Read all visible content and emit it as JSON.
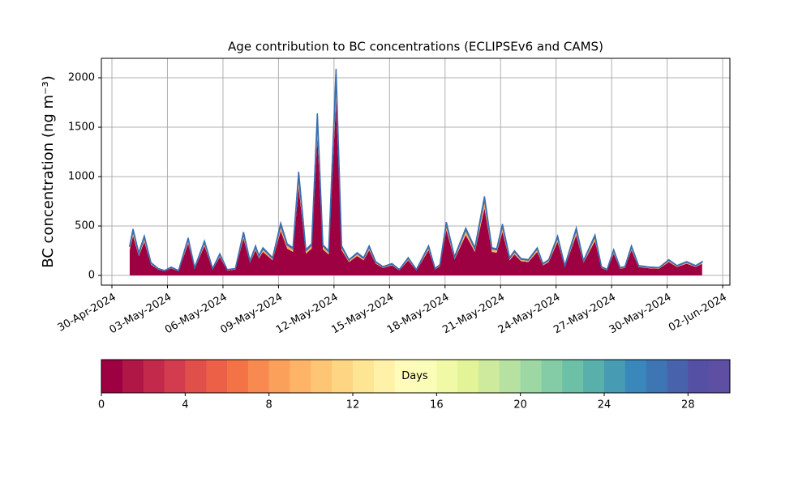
{
  "chart_data": [
    {
      "type": "stacked-area",
      "title": "Age contribution to BC concentrations (ECLIPSEv6 and CAMS)",
      "y_label": "BC concentration (ng m⁻³)",
      "x": [
        19843.96,
        19844.14,
        19844.45,
        19844.75,
        19845.11,
        19845.5,
        19845.85,
        19846.2,
        19846.6,
        19847.12,
        19847.47,
        19848.0,
        19848.44,
        19848.83,
        19849.23,
        19849.67,
        19850.11,
        19850.46,
        19850.76,
        19850.94,
        19851.16,
        19851.68,
        19852.12,
        19852.47,
        19852.78,
        19853.09,
        19853.48,
        19853.79,
        19854.1,
        19854.4,
        19854.71,
        19855.11,
        19855.41,
        19855.81,
        19856.25,
        19856.6,
        19856.9,
        19857.25,
        19857.65,
        19858.13,
        19858.53,
        19859.01,
        19859.45,
        19860.11,
        19860.46,
        19860.72,
        19861.07,
        19861.51,
        19862.12,
        19862.61,
        19863.13,
        19863.53,
        19863.79,
        19864.1,
        19864.49,
        19864.75,
        19865.11,
        19865.5,
        19865.98,
        19866.29,
        19866.6,
        19867.08,
        19867.47,
        19868.09,
        19868.48,
        19869.1,
        19869.45,
        19869.75,
        19870.11,
        19870.46,
        19870.72,
        19871.07,
        19871.46,
        19872.04,
        19872.56,
        19873.09,
        19873.53,
        19874.05,
        19874.54,
        19874.89
      ],
      "series": [
        {
          "color": "#9e0142",
          "values": [
            255,
            400,
            196,
            340,
            110,
            60,
            42,
            72,
            42,
            323,
            68,
            298,
            60,
            187,
            51,
            60,
            374,
            128,
            255,
            170,
            238,
            153,
            450,
            272,
            238,
            893,
            221,
            272,
            1394,
            264,
            212,
            1777,
            255,
            136,
            196,
            153,
            255,
            119,
            76,
            102,
            51,
            153,
            51,
            255,
            60,
            94,
            459,
            162,
            408,
            238,
            680,
            238,
            230,
            442,
            153,
            212,
            144,
            136,
            238,
            102,
            136,
            340,
            85,
            408,
            128,
            348,
            76,
            51,
            221,
            68,
            76,
            255,
            85,
            72,
            68,
            136,
            85,
            119,
            85,
            119
          ]
        },
        {
          "color": "#fdae61",
          "values": [
            33,
            52,
            25,
            44,
            14,
            8,
            6,
            9,
            6,
            42,
            9,
            38,
            8,
            24,
            7,
            8,
            48,
            16,
            33,
            22,
            31,
            20,
            58,
            35,
            31,
            115,
            29,
            35,
            180,
            34,
            28,
            230,
            33,
            18,
            25,
            20,
            33,
            15,
            10,
            13,
            7,
            20,
            7,
            33,
            8,
            12,
            59,
            21,
            53,
            31,
            88,
            31,
            30,
            57,
            20,
            28,
            19,
            18,
            31,
            13,
            18,
            44,
            11,
            53,
            16,
            45,
            10,
            7,
            29,
            9,
            10,
            33,
            11,
            9,
            9,
            18,
            11,
            15,
            11,
            15
          ]
        },
        {
          "color": "#3b6fb0",
          "values": [
            12,
            18,
            9,
            16,
            6,
            2,
            2,
            4,
            2,
            15,
            3,
            14,
            2,
            9,
            2,
            2,
            18,
            6,
            12,
            8,
            11,
            7,
            22,
            13,
            11,
            42,
            10,
            13,
            66,
            12,
            10,
            83,
            12,
            6,
            9,
            7,
            12,
            6,
            4,
            5,
            2,
            7,
            2,
            12,
            2,
            4,
            22,
            7,
            19,
            11,
            32,
            11,
            10,
            21,
            7,
            10,
            7,
            6,
            11,
            5,
            6,
            16,
            4,
            19,
            6,
            17,
            4,
            2,
            10,
            3,
            4,
            12,
            4,
            4,
            3,
            6,
            4,
            6,
            4,
            6
          ]
        }
      ],
      "xlim": [
        19842.43,
        19876.39
      ],
      "ylim": [
        -98,
        2197
      ],
      "xticks": [
        {
          "value": 19843,
          "label": "30-Apr-2024"
        },
        {
          "value": 19846,
          "label": "03-May-2024"
        },
        {
          "value": 19849,
          "label": "06-May-2024"
        },
        {
          "value": 19852,
          "label": "09-May-2024"
        },
        {
          "value": 19855,
          "label": "12-May-2024"
        },
        {
          "value": 19858,
          "label": "15-May-2024"
        },
        {
          "value": 19861,
          "label": "18-May-2024"
        },
        {
          "value": 19864,
          "label": "21-May-2024"
        },
        {
          "value": 19867,
          "label": "24-May-2024"
        },
        {
          "value": 19870,
          "label": "27-May-2024"
        },
        {
          "value": 19873,
          "label": "30-May-2024"
        },
        {
          "value": 19876,
          "label": "02-Jun-2024"
        }
      ],
      "yticks": [
        0,
        500,
        1000,
        1500,
        2000
      ],
      "grid": true
    },
    {
      "type": "colorbar",
      "label": "Days",
      "colors": [
        "#9e0142",
        "#b01646",
        "#c2294a",
        "#d33c4e",
        "#e04f4a",
        "#eb6046",
        "#f47346",
        "#f88a51",
        "#fba05b",
        "#fdb466",
        "#fdc574",
        "#fed683",
        "#fee593",
        "#fff1a8",
        "#fffbb8",
        "#fafdb7",
        "#eff9a6",
        "#e2f398",
        "#cdea9d",
        "#b6e1a1",
        "#9cd7a4",
        "#83cca5",
        "#6bc0a5",
        "#59b0aa",
        "#479cb3",
        "#3a88bb",
        "#3e75b3",
        "#4863ac",
        "#5650a4",
        "#5e4fa2"
      ],
      "xlim": [
        0,
        30
      ],
      "xticks": [
        0,
        4,
        8,
        12,
        16,
        20,
        24,
        28
      ]
    }
  ]
}
